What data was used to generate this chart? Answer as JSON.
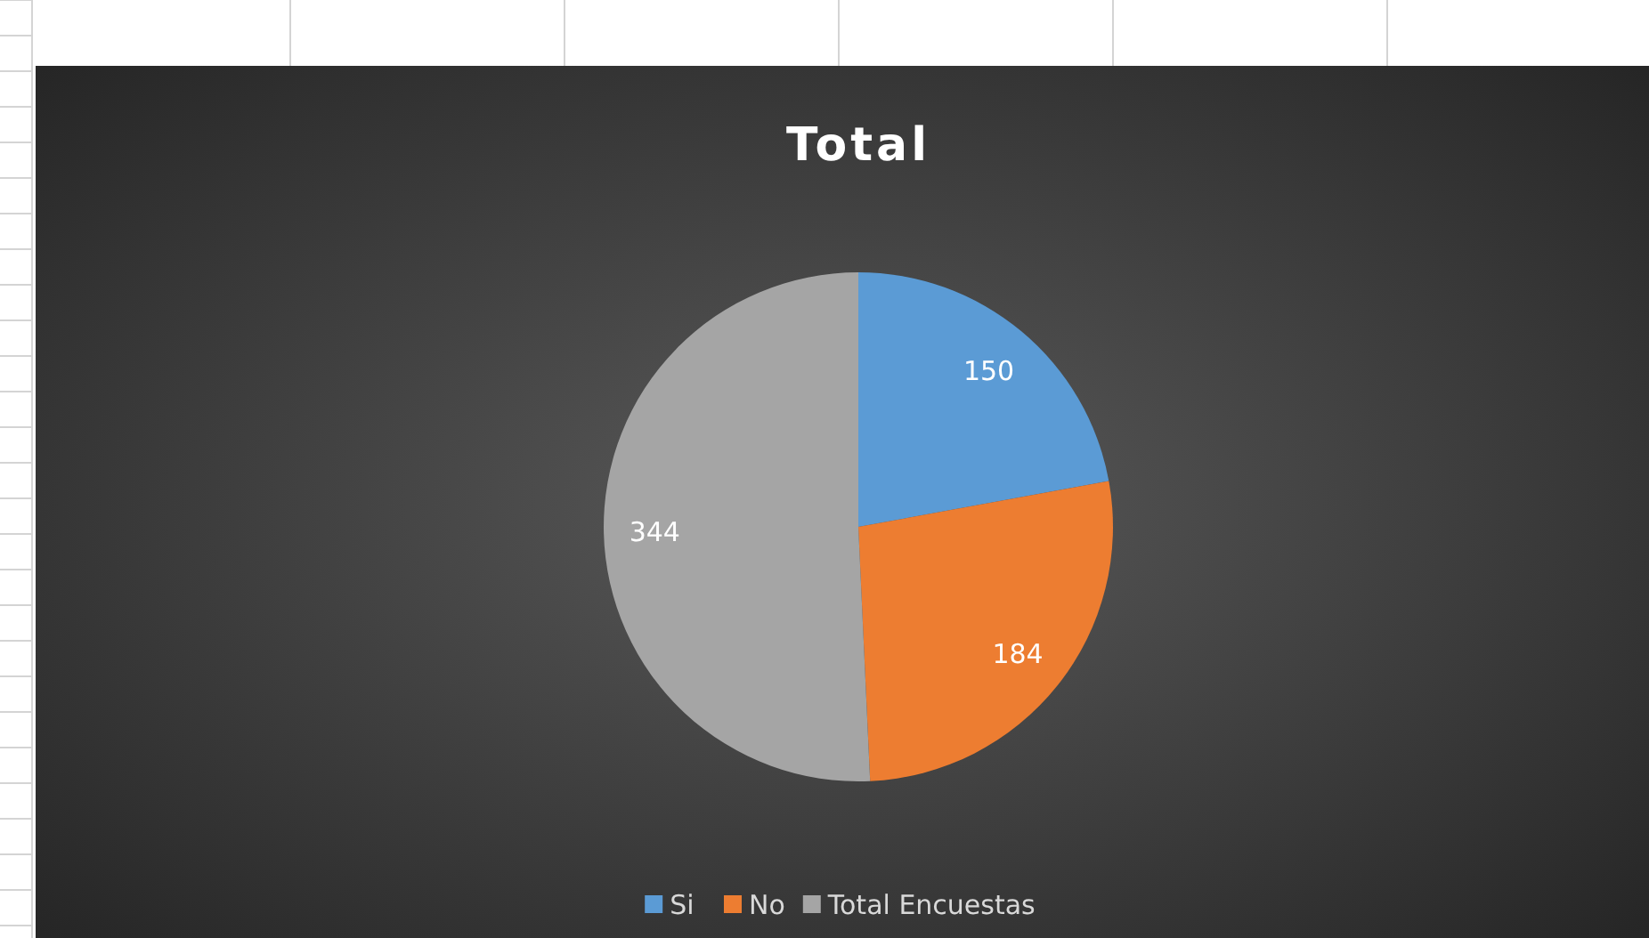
{
  "chart_data": {
    "type": "pie",
    "title": "Total",
    "categories": [
      "Si",
      "No",
      "Total Encuestas"
    ],
    "values": [
      150,
      184,
      344
    ],
    "colors": [
      "#5b9bd5",
      "#ed7d31",
      "#a5a5a5"
    ],
    "data_labels": true,
    "legend": "bottom"
  }
}
